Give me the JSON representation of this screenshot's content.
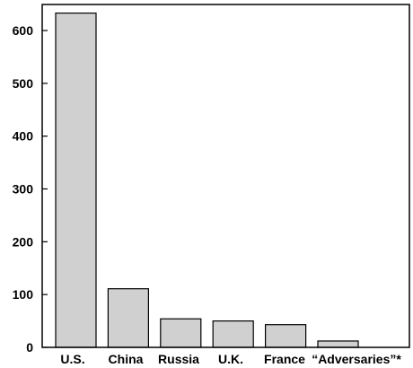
{
  "chart_data": {
    "type": "bar",
    "title": "",
    "xlabel": "",
    "ylabel": "",
    "categories": [
      "U.S.",
      "China",
      "Russia",
      "U.K.",
      "France",
      "“Adversaries”*"
    ],
    "values": [
      633,
      111,
      54,
      50,
      43,
      12
    ],
    "ylim": [
      0,
      650
    ],
    "yticks": [
      0,
      100,
      200,
      300,
      400,
      500,
      600
    ],
    "grid": false,
    "bar_color": "#d0d0d0",
    "bar_edge_color": "#000000"
  }
}
